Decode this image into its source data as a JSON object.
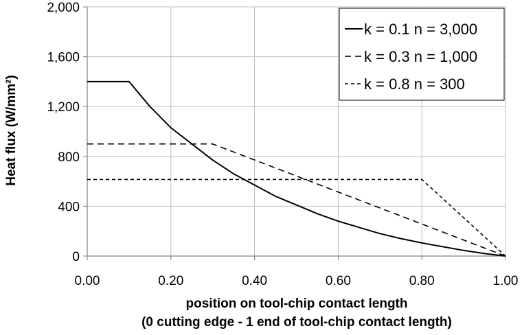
{
  "chart_data": {
    "type": "line",
    "title": "",
    "xlabel_line1": "position on tool-chip contact length",
    "xlabel_line2": "(0 cutting edge - 1 end of tool-chip contact length)",
    "ylabel": "Heat flux (W/mm²)",
    "xlim": [
      0.0,
      1.0
    ],
    "ylim": [
      0,
      2000
    ],
    "x_ticks": [
      0.0,
      0.2,
      0.4,
      0.6,
      0.8,
      1.0
    ],
    "x_tick_labels": [
      "0.00",
      "0.20",
      "0.40",
      "0.60",
      "0.80",
      "1.00"
    ],
    "y_ticks": [
      0,
      400,
      800,
      1200,
      1600,
      2000
    ],
    "y_tick_labels": [
      "0",
      "400",
      "800",
      "1,200",
      "1,600",
      "2,000"
    ],
    "grid": true,
    "legend_position": "top-right",
    "series": [
      {
        "name": "k = 0.1 n = 3,000",
        "style": "solid",
        "x": [
          0.0,
          0.1,
          0.15,
          0.2,
          0.25,
          0.3,
          0.35,
          0.4,
          0.45,
          0.5,
          0.55,
          0.6,
          0.65,
          0.7,
          0.75,
          0.8,
          0.85,
          0.9,
          0.95,
          1.0
        ],
        "y": [
          1400,
          1400,
          1200,
          1030,
          900,
          770,
          660,
          570,
          480,
          410,
          340,
          280,
          230,
          180,
          140,
          105,
          75,
          45,
          20,
          0
        ]
      },
      {
        "name": "k = 0.3 n = 1,000",
        "style": "dashed",
        "x": [
          0.0,
          0.3,
          1.0
        ],
        "y": [
          900,
          900,
          0
        ]
      },
      {
        "name": "k = 0.8 n = 300",
        "style": "short-dashed",
        "x": [
          0.0,
          0.8,
          1.0
        ],
        "y": [
          615,
          615,
          0
        ]
      }
    ]
  }
}
